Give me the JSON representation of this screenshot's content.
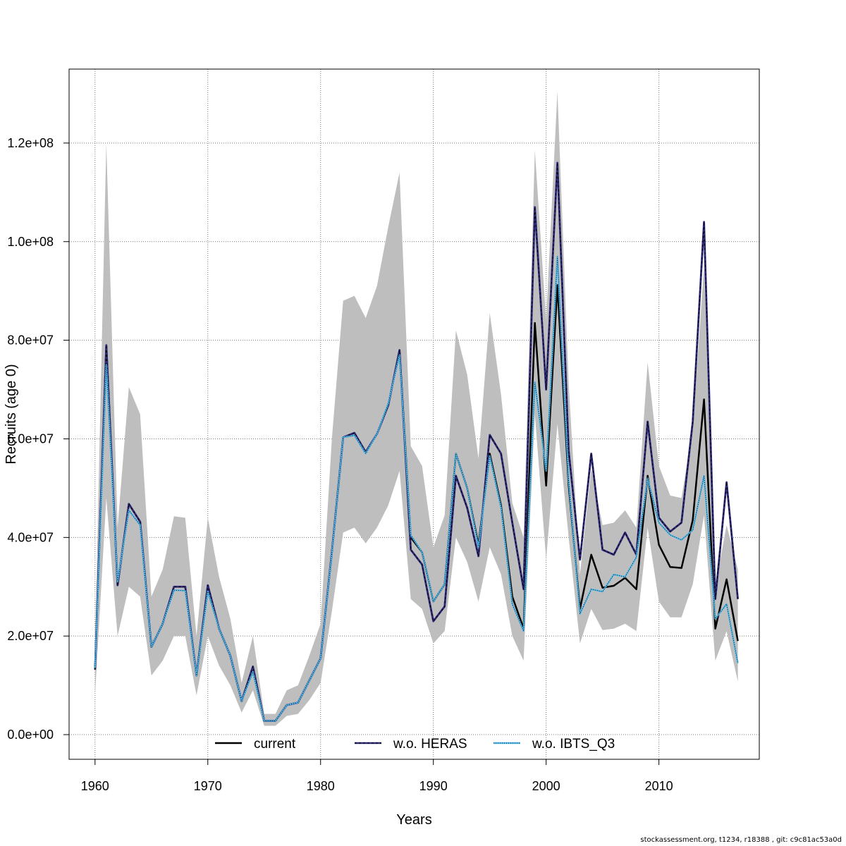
{
  "chart_data": {
    "type": "line",
    "title": "",
    "xlabel": "Years",
    "ylabel": "Recruits (age 0)",
    "xlim": [
      1957.7,
      2018.9
    ],
    "ylim": [
      -5000000,
      135000000
    ],
    "x_ticks": [
      1960,
      1970,
      1980,
      1990,
      2000,
      2010
    ],
    "x_tick_labels": [
      "1960",
      "1970",
      "1980",
      "1990",
      "2000",
      "2010"
    ],
    "y_ticks": [
      0,
      20000000,
      40000000,
      60000000,
      80000000,
      100000000,
      120000000
    ],
    "y_tick_labels": [
      "0.0e+00",
      "2.0e+07",
      "4.0e+07",
      "6.0e+07",
      "8.0e+07",
      "1.0e+08",
      "1.2e+08"
    ],
    "grid": true,
    "legend_position": "bottom",
    "band_color": "#bebebe",
    "x": [
      1960,
      1961,
      1962,
      1963,
      1964,
      1965,
      1966,
      1967,
      1968,
      1969,
      1970,
      1971,
      1972,
      1973,
      1974,
      1975,
      1976,
      1977,
      1978,
      1979,
      1980,
      1981,
      1982,
      1983,
      1984,
      1985,
      1986,
      1987,
      1988,
      1989,
      1990,
      1991,
      1992,
      1993,
      1994,
      1995,
      1996,
      1997,
      1998,
      1999,
      2000,
      2001,
      2002,
      2003,
      2004,
      2005,
      2006,
      2007,
      2008,
      2009,
      2010,
      2011,
      2012,
      2013,
      2014,
      2015,
      2016,
      2017
    ],
    "uncertainty_band": {
      "lower": [
        8000000,
        48000000,
        20000000,
        30000000,
        28000000,
        12000000,
        15000000,
        20000000,
        20000000,
        8000000,
        20000000,
        14000000,
        10000000,
        4500000,
        9000000,
        1800000,
        1800000,
        3800000,
        4200000,
        7000000,
        10500000,
        25000000,
        41000000,
        42000000,
        38800000,
        42000000,
        46500000,
        53500000,
        27500000,
        25500000,
        18500000,
        21000000,
        40000000,
        35000000,
        27000000,
        38000000,
        32500000,
        20000000,
        15000000,
        65000000,
        35500000,
        63000000,
        40000000,
        18500000,
        25500000,
        21200000,
        21500000,
        22500000,
        21000000,
        42000000,
        27000000,
        23800000,
        23800000,
        30500000,
        44500000,
        15000000,
        21000000,
        10800000
      ],
      "upper": [
        18000000,
        120000000,
        42000000,
        70500000,
        65000000,
        28000000,
        33500000,
        44300000,
        44000000,
        20000000,
        44000000,
        32000000,
        23500000,
        10500000,
        20000000,
        4200000,
        4200000,
        9000000,
        10000000,
        16000000,
        22500000,
        60000000,
        88000000,
        89000000,
        84500000,
        91000000,
        103000000,
        114000000,
        58500000,
        54500000,
        38000000,
        44500000,
        82000000,
        73000000,
        56000000,
        85500000,
        69000000,
        47000000,
        40000000,
        118500000,
        84000000,
        130500000,
        71000000,
        32500000,
        54000000,
        42500000,
        43000000,
        45500000,
        42000000,
        75500000,
        54500000,
        48500000,
        48000000,
        62000000,
        95000000,
        30000000,
        42500000,
        33500000
      ]
    },
    "series": [
      {
        "name": "current",
        "color": "#000000",
        "style": "solid",
        "values": [
          13200000,
          79000000,
          30300000,
          46800000,
          43200000,
          17800000,
          22500000,
          30000000,
          30000000,
          12000000,
          30300000,
          21500000,
          16000000,
          6800000,
          13800000,
          2800000,
          2800000,
          6000000,
          6500000,
          11000000,
          15500000,
          37000000,
          60300000,
          61200000,
          57300000,
          61000000,
          66800000,
          78000000,
          40000000,
          37000000,
          27000000,
          30500000,
          57000000,
          50000000,
          38500000,
          57000000,
          46500000,
          28000000,
          21500000,
          83500000,
          50500000,
          91200000,
          50500000,
          25500000,
          36500000,
          29800000,
          30200000,
          31800000,
          29500000,
          52500000,
          38500000,
          34000000,
          33800000,
          43500000,
          68000000,
          21500000,
          31500000,
          19000000
        ]
      },
      {
        "name": "w.o. HERAS",
        "color": "#2e2a78",
        "style": "solid-with-black-dashes",
        "values": [
          13200000,
          79000000,
          30300000,
          46800000,
          43200000,
          17800000,
          22500000,
          30000000,
          30000000,
          12000000,
          30300000,
          21500000,
          16000000,
          6800000,
          13800000,
          2800000,
          2800000,
          6000000,
          6500000,
          11000000,
          15500000,
          37000000,
          60300000,
          61200000,
          57300000,
          61000000,
          66800000,
          78000000,
          37500000,
          34500000,
          23000000,
          26000000,
          52500000,
          46000000,
          36200000,
          60800000,
          57000000,
          43000000,
          29500000,
          107000000,
          70000000,
          116000000,
          57500000,
          35500000,
          57000000,
          37500000,
          36500000,
          41000000,
          36500000,
          63500000,
          44000000,
          41200000,
          43000000,
          63500000,
          104000000,
          27500000,
          51200000,
          27500000
        ]
      },
      {
        "name": "w.o. IBTS_Q3",
        "color": "#4fb8ea",
        "style": "solid-with-black-dots",
        "values": [
          13500000,
          75000000,
          31000000,
          45500000,
          42500000,
          17800000,
          22500000,
          29300000,
          29200000,
          12000000,
          29000000,
          21500000,
          16000000,
          6800000,
          12700000,
          2800000,
          2800000,
          6000000,
          6500000,
          11000000,
          15500000,
          36800000,
          60300000,
          60700000,
          57000000,
          61000000,
          67200000,
          77000000,
          40500000,
          37000000,
          27000000,
          30500000,
          57000000,
          50000000,
          38000000,
          56500000,
          46000000,
          26500000,
          21000000,
          71500000,
          53500000,
          97000000,
          51500000,
          24500000,
          29500000,
          29000000,
          32500000,
          32000000,
          36000000,
          52000000,
          43000000,
          40500000,
          39500000,
          41500000,
          52500000,
          23500000,
          26500000,
          14500000
        ]
      }
    ]
  },
  "footer_text": "stockassessment.org, t1234, r18388 , git: c9c81ac53a0d"
}
